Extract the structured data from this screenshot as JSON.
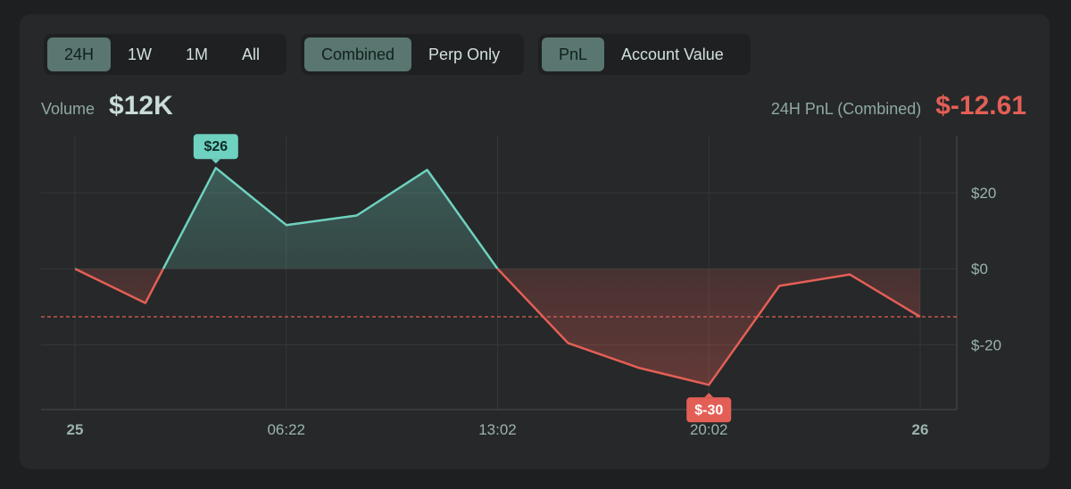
{
  "controls": {
    "range_tabs": [
      {
        "label": "24H",
        "active": true
      },
      {
        "label": "1W",
        "active": false
      },
      {
        "label": "1M",
        "active": false
      },
      {
        "label": "All",
        "active": false
      }
    ],
    "mode_tabs": [
      {
        "label": "Combined",
        "active": true
      },
      {
        "label": "Perp Only",
        "active": false
      }
    ],
    "metric_tabs": [
      {
        "label": "PnL",
        "active": true
      },
      {
        "label": "Account Value",
        "active": false
      }
    ]
  },
  "stats": {
    "volume_label": "Volume",
    "volume_value": "$12K",
    "pnl_label": "24H PnL (Combined)",
    "pnl_value": "$-12.61"
  },
  "colors": {
    "positive": "#6fd1c0",
    "negative": "#e35f56",
    "grid": "#343738",
    "axis_text": "#9bb3ae"
  },
  "chart_data": {
    "type": "line",
    "x_ticks": [
      "25",
      "06:22",
      "13:02",
      "20:02",
      "26"
    ],
    "y_ticks": [
      "$20",
      "$0",
      "$-20"
    ],
    "y_tick_values": [
      20,
      0,
      -20
    ],
    "ylim": [
      -37,
      35
    ],
    "x_domain": [
      0,
      24
    ],
    "x_tick_positions": [
      0,
      6,
      12,
      18,
      24
    ],
    "series": [
      {
        "x": [
          0,
          2,
          4,
          6,
          8,
          10,
          12,
          14,
          16,
          18,
          20,
          22,
          24
        ],
        "values": [
          0,
          -9,
          26.5,
          11.5,
          14,
          26,
          0,
          -19.5,
          -26,
          -30.5,
          -4.5,
          -1.5,
          -12.61
        ]
      }
    ],
    "reference_line": -12.61,
    "max_label": "$26",
    "min_label": "$-30"
  }
}
